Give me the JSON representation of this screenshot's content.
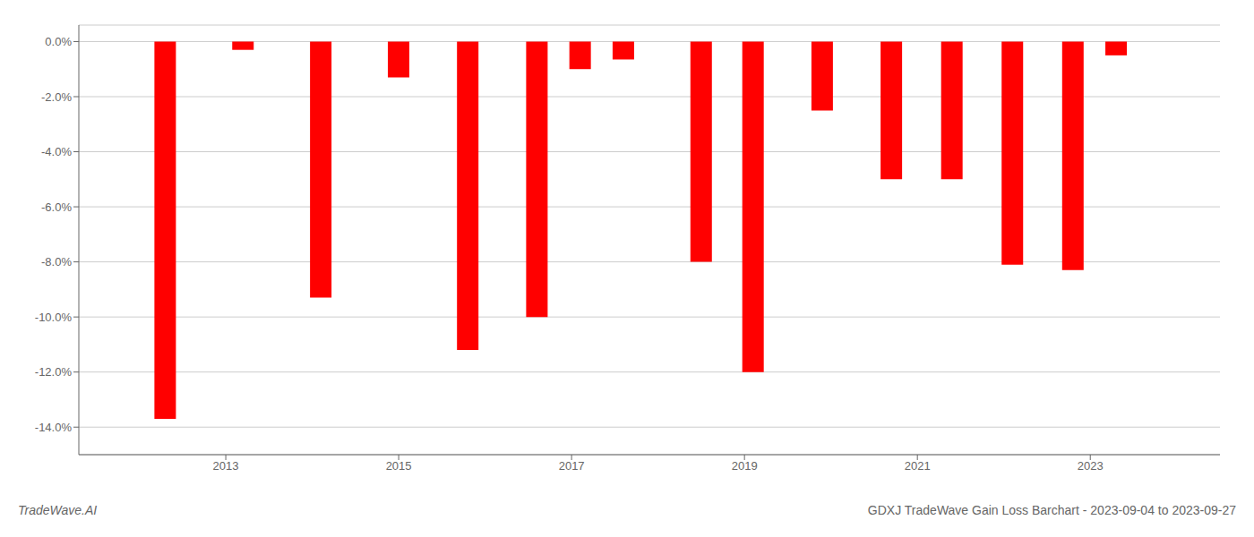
{
  "chart_data": {
    "type": "bar",
    "title": "GDXJ TradeWave Gain Loss Barchart - 2023-09-04 to 2023-09-27",
    "annotations": [
      "TradeWave.AI"
    ],
    "x": [
      2012.3,
      2013.2,
      2014.1,
      2015.0,
      2015.8,
      2016.6,
      2017.1,
      2017.6,
      2018.5,
      2019.1,
      2019.9,
      2020.7,
      2021.4,
      2022.1,
      2022.8,
      2023.3
    ],
    "values": [
      -13.7,
      -0.3,
      -9.3,
      -1.3,
      -11.2,
      -10.0,
      -1.0,
      -0.65,
      -8.0,
      -12.0,
      -2.5,
      -5.0,
      -5.0,
      -8.1,
      -8.3,
      -0.5
    ],
    "color": "#ff0000",
    "xlim": [
      2011.3,
      2024.5
    ],
    "xticks": [
      2013,
      2015,
      2017,
      2019,
      2021,
      2023
    ],
    "ylim": [
      -15.0,
      0.6
    ],
    "yticks": [
      {
        "value": 0.0,
        "label": "0.0%"
      },
      {
        "value": -2.0,
        "label": "-2.0%"
      },
      {
        "value": -4.0,
        "label": "-4.0%"
      },
      {
        "value": -6.0,
        "label": "-6.0%"
      },
      {
        "value": -8.0,
        "label": "-8.0%"
      },
      {
        "value": -10.0,
        "label": "-10.0%"
      },
      {
        "value": -12.0,
        "label": "-12.0%"
      },
      {
        "value": -14.0,
        "label": "-14.0%"
      }
    ],
    "grid": true
  }
}
